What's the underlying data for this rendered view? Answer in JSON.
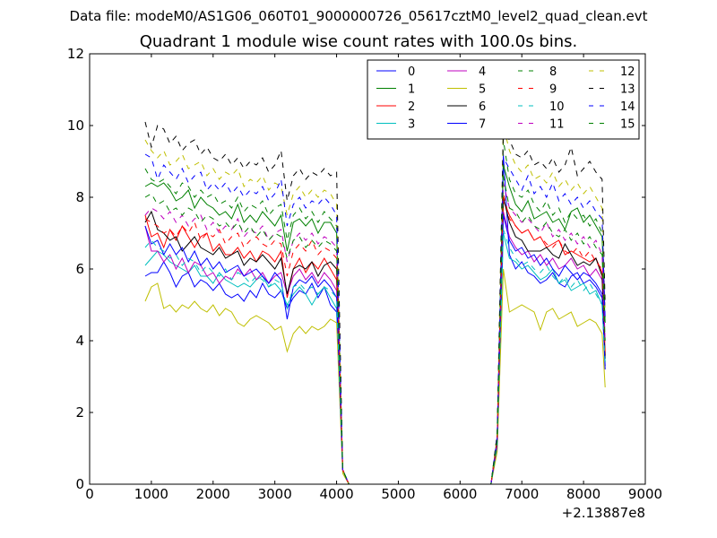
{
  "figure": {
    "suptitle": "Data file: modeM0/AS1G06_060T01_9000000726_05617cztM0_level2_quad_clean.evt",
    "title": "Quadrant 1 module wise count rates with 100.0s bins.",
    "x_offset_label": "+2.13887e8"
  },
  "chart_data": {
    "type": "line",
    "title": "Quadrant 1 module wise count rates with 100.0s bins.",
    "xlabel": "",
    "ylabel": "",
    "xlim": [
      0,
      9000
    ],
    "ylim": [
      0,
      12
    ],
    "x_ticks": [
      "0",
      "1000",
      "2000",
      "3000",
      "4000",
      "5000",
      "6000",
      "7000",
      "8000",
      "9000"
    ],
    "y_ticks": [
      "0",
      "2",
      "4",
      "6",
      "8",
      "10",
      "12"
    ],
    "grid": false,
    "legend_position": "top-right",
    "legend_columns": 4,
    "x": [
      900,
      1000,
      1100,
      1200,
      1300,
      1400,
      1500,
      1600,
      1700,
      1800,
      1900,
      2000,
      2100,
      2200,
      2300,
      2400,
      2500,
      2600,
      2700,
      2800,
      2900,
      3000,
      3100,
      3200,
      3300,
      3400,
      3500,
      3600,
      3700,
      3800,
      3900,
      4000,
      4100,
      4200,
      4300,
      6500,
      6600,
      6700,
      6800,
      6900,
      7000,
      7100,
      7200,
      7300,
      7400,
      7500,
      7600,
      7700,
      7800,
      7900,
      8000,
      8100,
      8200,
      8300,
      8350
    ],
    "series": [
      {
        "name": "0",
        "color": "#0000ff",
        "dash": "solid",
        "values": [
          5.8,
          5.9,
          5.9,
          6.2,
          5.9,
          5.5,
          5.8,
          5.9,
          5.5,
          5.7,
          5.6,
          5.4,
          5.6,
          5.3,
          5.2,
          5.3,
          5.1,
          5.4,
          5.2,
          5.6,
          5.3,
          5.2,
          5.4,
          4.9,
          5.2,
          5.4,
          5.3,
          5.6,
          5.2,
          5.5,
          5.0,
          4.8,
          0.4,
          0.0,
          0.0,
          0.0,
          1.0,
          9.2,
          6.4,
          6.0,
          6.2,
          5.9,
          5.8,
          5.6,
          5.7,
          5.9,
          5.6,
          5.5,
          5.8,
          5.9,
          5.6,
          5.7,
          5.5,
          5.2,
          3.3
        ]
      },
      {
        "name": "1",
        "color": "#008000",
        "dash": "solid",
        "values": [
          8.3,
          8.4,
          8.3,
          8.4,
          8.2,
          7.9,
          8.0,
          8.2,
          7.7,
          8.0,
          7.8,
          7.7,
          7.5,
          7.6,
          7.4,
          7.8,
          7.3,
          7.5,
          7.3,
          7.6,
          7.4,
          7.2,
          7.5,
          6.5,
          7.3,
          7.4,
          7.2,
          7.4,
          7.0,
          7.3,
          7.3,
          7.0,
          0.4,
          0.0,
          0.0,
          0.0,
          1.3,
          8.9,
          8.3,
          7.8,
          7.6,
          7.9,
          7.4,
          7.5,
          7.6,
          7.3,
          7.4,
          7.1,
          7.6,
          7.7,
          7.3,
          7.5,
          7.2,
          6.9,
          4.5
        ]
      },
      {
        "name": "2",
        "color": "#ff0000",
        "dash": "solid",
        "values": [
          7.5,
          6.9,
          7.0,
          6.6,
          7.1,
          6.8,
          7.2,
          6.9,
          6.6,
          6.9,
          7.0,
          6.5,
          6.7,
          6.4,
          6.4,
          6.6,
          6.3,
          6.5,
          6.2,
          6.5,
          6.4,
          6.2,
          6.5,
          5.2,
          6.0,
          6.3,
          5.9,
          6.2,
          6.0,
          6.3,
          6.0,
          5.7,
          0.4,
          0.0,
          0.0,
          0.0,
          1.2,
          7.9,
          7.5,
          7.2,
          7.0,
          7.1,
          6.8,
          6.9,
          6.6,
          6.7,
          6.8,
          6.4,
          6.5,
          6.4,
          6.3,
          6.2,
          6.3,
          5.9,
          3.6
        ]
      },
      {
        "name": "3",
        "color": "#00bfbf",
        "dash": "solid",
        "values": [
          6.1,
          6.3,
          6.5,
          6.4,
          6.2,
          6.1,
          6.0,
          5.9,
          6.1,
          5.8,
          5.8,
          5.6,
          5.9,
          5.7,
          5.6,
          5.5,
          5.6,
          5.5,
          5.7,
          5.8,
          5.5,
          5.6,
          5.4,
          5.0,
          5.3,
          5.5,
          5.3,
          5.0,
          5.3,
          5.5,
          5.2,
          4.9,
          0.4,
          0.0,
          0.0,
          0.0,
          1.1,
          7.0,
          6.3,
          6.2,
          6.0,
          6.1,
          5.9,
          5.7,
          5.8,
          6.0,
          5.6,
          5.7,
          5.4,
          5.5,
          5.6,
          5.3,
          5.4,
          5.0,
          3.4
        ]
      },
      {
        "name": "4",
        "color": "#bf00bf",
        "dash": "solid",
        "values": [
          7.2,
          6.5,
          6.5,
          6.2,
          6.4,
          6.0,
          6.3,
          5.9,
          6.2,
          6.1,
          5.8,
          5.9,
          5.6,
          5.8,
          5.7,
          6.0,
          5.8,
          6.0,
          5.7,
          5.9,
          5.6,
          5.8,
          5.9,
          5.3,
          5.8,
          6.0,
          5.7,
          5.9,
          5.6,
          5.9,
          5.7,
          5.4,
          0.4,
          0.0,
          0.0,
          0.0,
          1.1,
          7.6,
          6.9,
          6.6,
          6.4,
          6.5,
          6.2,
          6.4,
          6.1,
          6.3,
          6.0,
          6.1,
          6.3,
          6.0,
          6.1,
          5.8,
          6.0,
          5.7,
          3.5
        ]
      },
      {
        "name": "5",
        "color": "#bfbf00",
        "dash": "solid",
        "values": [
          5.1,
          5.5,
          5.6,
          4.9,
          5.0,
          4.8,
          5.0,
          4.9,
          5.1,
          4.9,
          4.8,
          5.0,
          4.7,
          4.9,
          4.8,
          4.5,
          4.4,
          4.6,
          4.7,
          4.6,
          4.5,
          4.3,
          4.4,
          3.7,
          4.2,
          4.4,
          4.2,
          4.4,
          4.3,
          4.4,
          4.6,
          4.5,
          0.3,
          0.0,
          0.0,
          0.0,
          0.9,
          6.0,
          4.8,
          4.9,
          5.0,
          4.9,
          4.8,
          4.3,
          4.8,
          4.9,
          4.6,
          4.7,
          4.8,
          4.4,
          4.5,
          4.6,
          4.5,
          4.2,
          2.7
        ]
      },
      {
        "name": "6",
        "color": "#000000",
        "dash": "solid",
        "values": [
          7.3,
          7.6,
          7.1,
          7.0,
          6.8,
          6.9,
          6.5,
          6.7,
          6.9,
          6.6,
          6.5,
          6.4,
          6.6,
          6.3,
          6.4,
          6.5,
          6.1,
          6.3,
          6.2,
          6.4,
          6.2,
          6.0,
          6.3,
          5.3,
          6.0,
          6.1,
          6.0,
          6.2,
          5.8,
          6.1,
          6.2,
          6.0,
          0.4,
          0.0,
          0.0,
          0.0,
          1.2,
          8.0,
          7.3,
          6.9,
          6.8,
          6.5,
          6.5,
          6.5,
          6.6,
          6.4,
          6.3,
          6.7,
          6.4,
          6.1,
          6.2,
          6.1,
          6.3,
          5.8,
          3.5
        ]
      },
      {
        "name": "7",
        "color": "#0000ff",
        "dash": "solid",
        "values": [
          7.2,
          6.7,
          6.8,
          6.4,
          6.7,
          6.4,
          6.6,
          6.2,
          6.5,
          6.1,
          6.3,
          6.0,
          6.2,
          5.9,
          6.0,
          6.1,
          5.8,
          5.9,
          6.0,
          5.8,
          5.6,
          5.9,
          5.7,
          4.6,
          5.5,
          5.7,
          5.6,
          5.8,
          5.5,
          5.7,
          5.5,
          5.2,
          0.4,
          0.0,
          0.0,
          0.0,
          1.1,
          7.5,
          6.8,
          6.5,
          6.6,
          6.3,
          6.4,
          6.1,
          6.3,
          6.0,
          5.8,
          6.1,
          5.9,
          5.7,
          5.9,
          5.8,
          5.6,
          5.3,
          3.2
        ]
      },
      {
        "name": "8",
        "color": "#008000",
        "dash": "dashed",
        "values": [
          8.8,
          8.5,
          8.4,
          8.5,
          8.3,
          8.1,
          8.4,
          8.3,
          8.0,
          8.2,
          8.0,
          8.1,
          7.8,
          7.9,
          7.7,
          8.0,
          7.6,
          7.8,
          7.7,
          7.9,
          7.5,
          7.7,
          7.8,
          6.8,
          7.5,
          7.7,
          7.4,
          7.6,
          7.3,
          7.6,
          7.4,
          7.2,
          0.4,
          0.0,
          0.0,
          0.0,
          1.3,
          9.6,
          8.5,
          8.1,
          8.0,
          8.2,
          7.8,
          7.6,
          7.9,
          7.5,
          7.7,
          7.3,
          7.6,
          7.4,
          7.5,
          7.2,
          7.4,
          7.0,
          4.6
        ]
      },
      {
        "name": "9",
        "color": "#ff0000",
        "dash": "dashed",
        "values": [
          7.4,
          7.3,
          7.2,
          7.0,
          7.1,
          6.9,
          7.2,
          7.0,
          7.3,
          6.8,
          7.0,
          6.9,
          7.1,
          6.7,
          6.9,
          7.0,
          6.6,
          6.8,
          6.9,
          6.7,
          6.6,
          6.8,
          6.7,
          5.8,
          6.5,
          6.7,
          6.5,
          6.8,
          6.4,
          6.6,
          6.5,
          6.3,
          0.4,
          0.0,
          0.0,
          0.0,
          1.2,
          8.1,
          7.4,
          7.2,
          7.0,
          7.1,
          6.8,
          6.9,
          6.7,
          6.6,
          6.8,
          6.5,
          6.4,
          6.6,
          6.3,
          6.5,
          6.2,
          6.0,
          3.7
        ]
      },
      {
        "name": "10",
        "color": "#00bfbf",
        "dash": "dashed",
        "values": [
          6.6,
          6.8,
          6.6,
          6.5,
          6.3,
          6.4,
          6.1,
          6.3,
          6.2,
          5.9,
          6.1,
          5.9,
          5.8,
          6.0,
          5.7,
          5.9,
          5.8,
          5.6,
          5.8,
          5.7,
          5.5,
          5.7,
          5.6,
          4.9,
          5.5,
          5.6,
          5.4,
          5.5,
          5.3,
          5.5,
          5.4,
          5.2,
          0.4,
          0.0,
          0.0,
          0.0,
          1.1,
          7.1,
          6.6,
          6.3,
          6.1,
          6.2,
          6.0,
          5.9,
          6.1,
          5.8,
          5.6,
          5.8,
          5.5,
          5.7,
          5.4,
          5.6,
          5.3,
          5.0,
          3.4
        ]
      },
      {
        "name": "11",
        "color": "#bf00bf",
        "dash": "dashed",
        "values": [
          7.5,
          7.7,
          7.6,
          7.4,
          7.6,
          7.3,
          7.5,
          7.2,
          7.4,
          7.5,
          7.1,
          7.3,
          7.0,
          7.2,
          7.1,
          7.4,
          6.9,
          7.1,
          7.0,
          7.2,
          6.8,
          7.0,
          7.1,
          6.2,
          6.8,
          7.0,
          6.8,
          7.0,
          6.7,
          6.9,
          6.8,
          6.6,
          0.4,
          0.0,
          0.0,
          0.0,
          1.2,
          8.4,
          7.7,
          7.5,
          7.3,
          7.4,
          7.2,
          7.0,
          7.3,
          6.9,
          7.1,
          6.8,
          7.0,
          6.7,
          6.9,
          6.6,
          6.8,
          6.4,
          4.0
        ]
      },
      {
        "name": "12",
        "color": "#bfbf00",
        "dash": "dashed",
        "values": [
          9.6,
          9.3,
          9.1,
          9.3,
          8.9,
          9.0,
          9.2,
          8.8,
          8.9,
          9.0,
          8.6,
          8.8,
          8.5,
          8.7,
          8.6,
          8.8,
          8.3,
          8.5,
          8.4,
          8.6,
          8.2,
          8.4,
          8.3,
          7.5,
          8.1,
          8.3,
          8.0,
          8.2,
          8.0,
          8.2,
          8.1,
          7.8,
          0.4,
          0.0,
          0.0,
          0.0,
          1.4,
          10.0,
          9.3,
          8.9,
          8.7,
          8.9,
          8.5,
          8.6,
          8.4,
          8.7,
          8.3,
          8.5,
          8.2,
          8.4,
          8.1,
          8.3,
          8.0,
          7.7,
          4.8
        ]
      },
      {
        "name": "13",
        "color": "#000000",
        "dash": "dashed",
        "values": [
          10.1,
          9.4,
          10.0,
          9.9,
          9.5,
          9.7,
          9.3,
          9.5,
          9.6,
          9.2,
          9.4,
          9.1,
          9.0,
          9.2,
          8.9,
          9.1,
          8.8,
          9.0,
          8.9,
          9.1,
          8.7,
          8.9,
          9.3,
          7.9,
          8.6,
          8.8,
          8.5,
          8.7,
          8.6,
          8.8,
          8.6,
          8.7,
          0.4,
          0.0,
          0.0,
          0.0,
          1.4,
          9.9,
          9.6,
          9.2,
          9.1,
          9.3,
          8.9,
          9.0,
          8.8,
          9.1,
          8.7,
          8.9,
          9.4,
          8.6,
          8.8,
          9.0,
          8.7,
          8.5,
          5.0
        ]
      },
      {
        "name": "14",
        "color": "#0000ff",
        "dash": "dashed",
        "values": [
          9.2,
          9.1,
          8.5,
          8.9,
          8.7,
          8.5,
          8.8,
          8.4,
          8.6,
          8.7,
          8.2,
          8.4,
          8.2,
          8.4,
          8.1,
          8.3,
          8.0,
          8.2,
          8.1,
          8.3,
          7.9,
          8.1,
          8.5,
          7.2,
          7.8,
          8.0,
          7.7,
          7.9,
          7.8,
          8.0,
          7.8,
          7.5,
          0.4,
          0.0,
          0.0,
          0.0,
          1.3,
          9.1,
          8.8,
          8.5,
          8.2,
          8.6,
          8.1,
          8.3,
          8.0,
          8.4,
          7.9,
          8.1,
          7.8,
          8.0,
          7.7,
          7.9,
          7.6,
          7.4,
          4.6
        ]
      },
      {
        "name": "15",
        "color": "#008000",
        "dash": "dashed",
        "values": [
          8.0,
          8.1,
          7.8,
          7.9,
          7.6,
          7.7,
          7.5,
          7.7,
          7.6,
          7.3,
          7.5,
          7.4,
          7.2,
          7.3,
          7.1,
          7.3,
          7.0,
          7.2,
          6.9,
          7.1,
          6.8,
          7.0,
          6.9,
          6.3,
          6.8,
          6.9,
          6.6,
          6.8,
          6.6,
          6.8,
          6.7,
          6.5,
          0.4,
          0.0,
          0.0,
          0.0,
          1.2,
          8.6,
          7.7,
          7.6,
          7.3,
          7.5,
          7.2,
          7.1,
          7.3,
          7.0,
          6.9,
          7.1,
          6.8,
          7.0,
          6.7,
          6.9,
          6.6,
          6.4,
          4.0
        ]
      }
    ]
  }
}
